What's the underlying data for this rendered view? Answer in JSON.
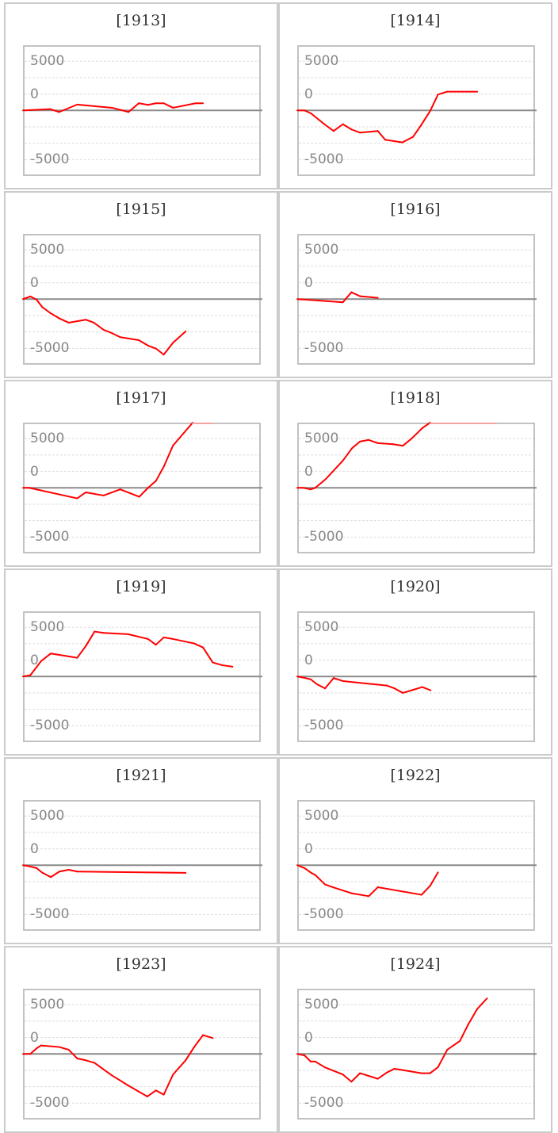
{
  "colors": {
    "line": "#ff0000",
    "clipped_line": "#f2a3a3",
    "zero_line": "#8a8a8a",
    "grid": "#dddddd",
    "frame": "#c2c2c2"
  },
  "y_tick_labels": [
    "5000",
    "0",
    "-5000"
  ],
  "chart_data": [
    {
      "type": "line",
      "title": "[1913]",
      "ylim": [
        -10000,
        9940
      ],
      "xlim": [
        0,
        100
      ],
      "x": [
        0,
        11.4,
        15.2,
        22.8,
        37.5,
        44.4,
        48.7,
        52.6,
        55.9,
        59.2,
        63.1,
        72.6,
        75.7
      ],
      "y": [
        0,
        200,
        -240,
        890,
        400,
        -240,
        1090,
        850,
        1090,
        1090,
        400,
        1090,
        1090
      ]
    },
    {
      "type": "line",
      "title": "[1914]",
      "ylim": [
        -10000,
        9940
      ],
      "xlim": [
        0,
        100
      ],
      "x": [
        0,
        3.1,
        5.9,
        11.4,
        15.3,
        19.2,
        22.8,
        26.4,
        33.9,
        37,
        44.2,
        48.7,
        52,
        55.9,
        59.2,
        63.1,
        75.7
      ],
      "y": [
        0,
        0,
        -480,
        -2100,
        -3140,
        -2100,
        -2900,
        -3390,
        -3140,
        -4470,
        -4880,
        -4030,
        -2300,
        -80,
        2420,
        2860,
        2860
      ]
    },
    {
      "type": "line",
      "title": "[1915]",
      "ylim": [
        -10000,
        9940
      ],
      "xlim": [
        0,
        100
      ],
      "x": [
        0,
        3.1,
        5.7,
        8.1,
        11.4,
        15.3,
        19.2,
        26.4,
        29.8,
        33.9,
        37,
        40.9,
        48.7,
        52.6,
        55.9,
        59.2,
        63.1,
        68.4
      ],
      "y": [
        0,
        400,
        -80,
        -1210,
        -2100,
        -2940,
        -3590,
        -3140,
        -3590,
        -4670,
        -5120,
        -5800,
        -6250,
        -7090,
        -7540,
        -8460,
        -6650,
        -4920
      ]
    },
    {
      "type": "line",
      "title": "[1916]",
      "ylim": [
        -10000,
        9940
      ],
      "xlim": [
        0,
        100
      ],
      "x": [
        0,
        19.2,
        22.8,
        26.4,
        33.9
      ],
      "y": [
        0,
        -480,
        1050,
        440,
        200
      ]
    },
    {
      "type": "line",
      "title": "[1917]",
      "ylim": [
        -10000,
        9940
      ],
      "xlim": [
        0,
        100
      ],
      "x": [
        0,
        2.6,
        22.8,
        26.4,
        33.9,
        40.9,
        48.9,
        52.6,
        55.9,
        59.2,
        63.1,
        71.4,
        79.8
      ],
      "y": [
        0,
        0,
        -1610,
        -690,
        -1170,
        -240,
        -1370,
        0,
        1050,
        3220,
        6450,
        10000,
        10000
      ]
    },
    {
      "type": "line",
      "title": "[1918]",
      "ylim": [
        -10000,
        9940
      ],
      "xlim": [
        0,
        100
      ],
      "x": [
        0,
        2.6,
        5.7,
        7.6,
        12,
        19.2,
        23.1,
        26.4,
        30,
        33.9,
        40.3,
        44.4,
        48.1,
        52.6,
        55.9,
        83.4
      ],
      "y": [
        0,
        0,
        -240,
        0,
        1330,
        4150,
        6050,
        7050,
        7300,
        6810,
        6650,
        6410,
        7500,
        9100,
        10000,
        10000
      ]
    },
    {
      "type": "line",
      "title": "[1919]",
      "ylim": [
        -10000,
        9940
      ],
      "xlim": [
        0,
        100
      ],
      "x": [
        0,
        3.1,
        7.6,
        11.7,
        22.8,
        26.4,
        30.1,
        33.9,
        44.2,
        52.6,
        55.9,
        59.2,
        63.1,
        72,
        75.7,
        79.8,
        83.7,
        88.1
      ],
      "y": [
        0,
        200,
        2340,
        3510,
        2860,
        4630,
        6850,
        6650,
        6450,
        5720,
        4840,
        5960,
        5720,
        5040,
        4430,
        2140,
        1730,
        1490
      ]
    },
    {
      "type": "line",
      "title": "[1920]",
      "ylim": [
        -10000,
        9940
      ],
      "xlim": [
        0,
        100
      ],
      "x": [
        0,
        3.1,
        5.7,
        8.1,
        11.7,
        15.3,
        19.2,
        26.4,
        37.6,
        40.9,
        44.4,
        48.1,
        52.6,
        56.1
      ],
      "y": [
        0,
        -200,
        -440,
        -1130,
        -1810,
        -240,
        -690,
        -970,
        -1370,
        -1810,
        -2500,
        -2100,
        -1610,
        -2100
      ]
    },
    {
      "type": "line",
      "title": "[1921]",
      "ylim": [
        -10000,
        9940
      ],
      "xlim": [
        0,
        100
      ],
      "x": [
        0,
        3.1,
        5.7,
        8.1,
        11.7,
        15.3,
        19.2,
        22.8,
        68.4
      ],
      "y": [
        0,
        -200,
        -440,
        -1130,
        -1810,
        -970,
        -690,
        -970,
        -1170
      ]
    },
    {
      "type": "line",
      "title": "[1922]",
      "ylim": [
        -10000,
        9940
      ],
      "xlim": [
        0,
        100
      ],
      "x": [
        0,
        3.1,
        5.9,
        7.6,
        11.7,
        15.3,
        22.8,
        30.1,
        33.9,
        52.3,
        55.9,
        59.2
      ],
      "y": [
        0,
        -440,
        -1170,
        -1490,
        -2940,
        -3390,
        -4270,
        -4720,
        -3350,
        -4510,
        -3140,
        -1090
      ]
    },
    {
      "type": "line",
      "title": "[1923]",
      "ylim": [
        -10000,
        9940
      ],
      "xlim": [
        0,
        100
      ],
      "x": [
        0,
        3.1,
        5.9,
        7.6,
        15.3,
        19.2,
        22.8,
        26.4,
        30.1,
        37,
        44.2,
        52.3,
        55.9,
        59.2,
        63.1,
        68.4,
        72,
        75.7,
        79.8
      ],
      "y": [
        0,
        0,
        890,
        1290,
        1050,
        640,
        -690,
        -970,
        -1370,
        -3180,
        -4800,
        -6490,
        -5560,
        -6210,
        -3140,
        -970,
        1050,
        2860,
        2420
      ]
    },
    {
      "type": "line",
      "title": "[1924]",
      "ylim": [
        -10000,
        9940
      ],
      "xlim": [
        0,
        100
      ],
      "x": [
        0,
        3.1,
        5.7,
        7.6,
        11.7,
        19.2,
        22.8,
        26.4,
        33.9,
        37.6,
        40.9,
        52.3,
        55.9,
        59.2,
        63.1,
        68.4,
        72,
        75.7,
        79.8
      ],
      "y": [
        0,
        -240,
        -1170,
        -1170,
        -2060,
        -3140,
        -4230,
        -2940,
        -3790,
        -2860,
        -2260,
        -2940,
        -2940,
        -2020,
        640,
        1970,
        4550,
        6850,
        8460
      ]
    }
  ]
}
